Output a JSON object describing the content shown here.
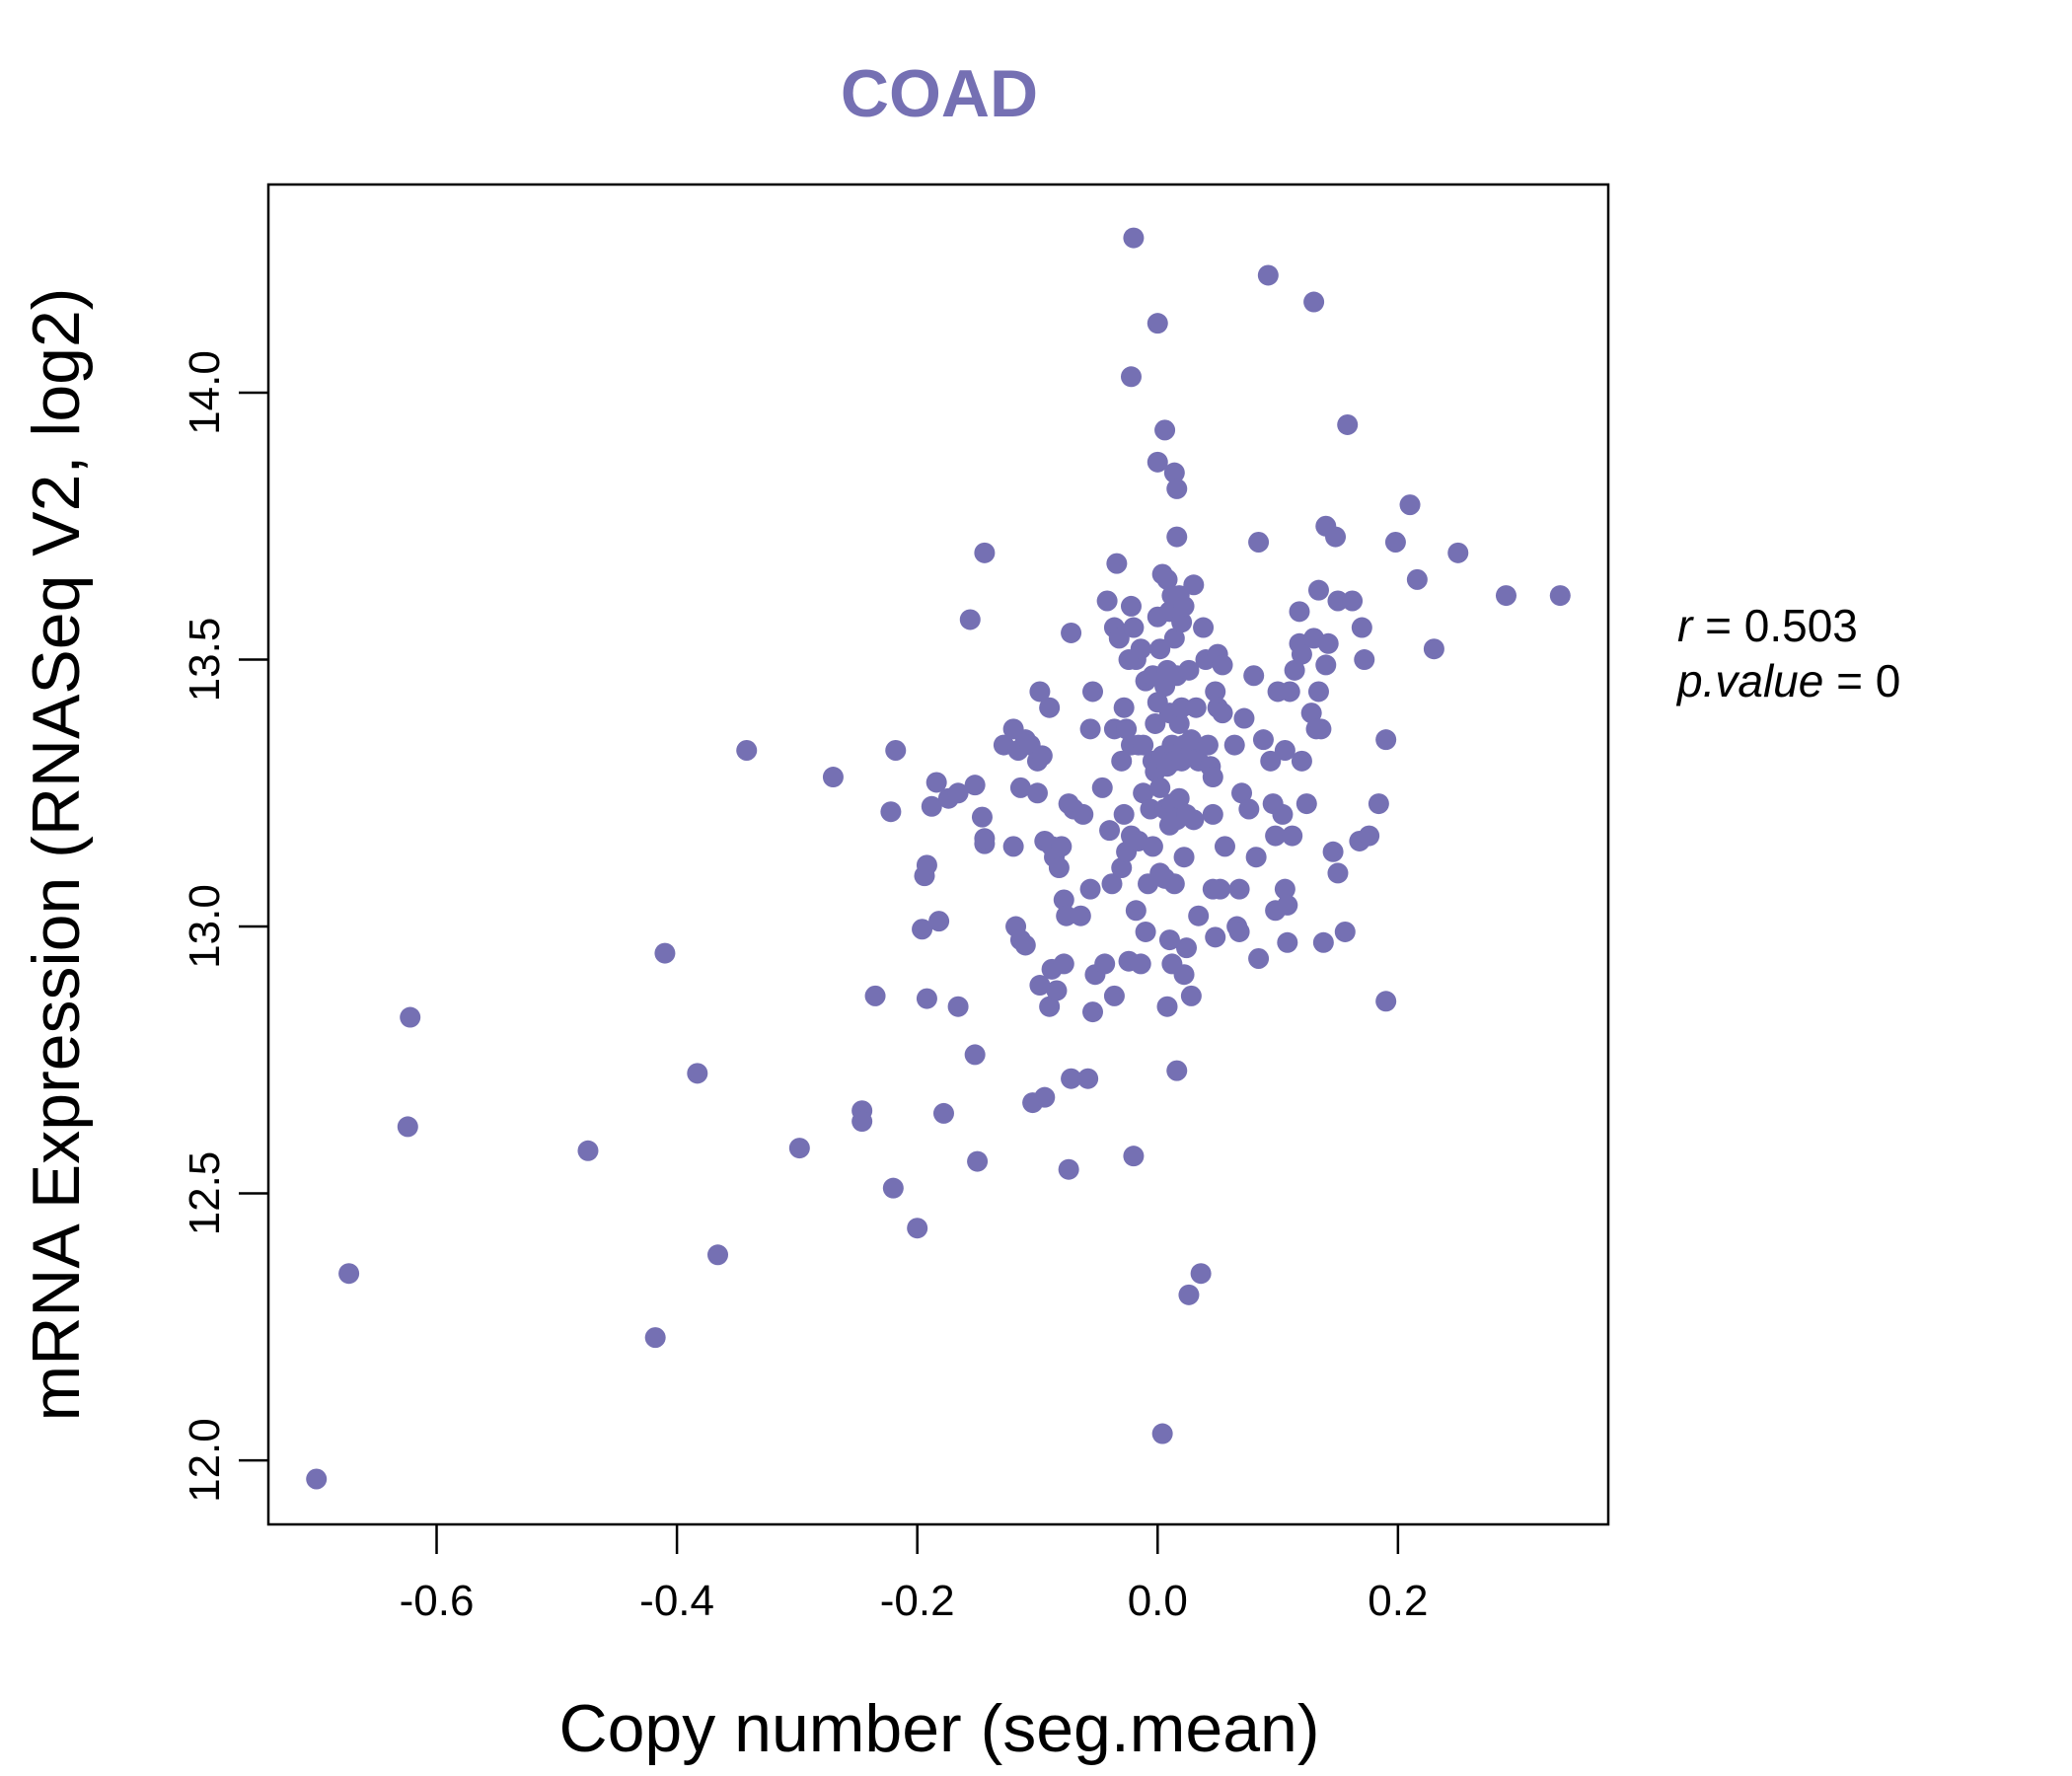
{
  "chart_data": {
    "type": "scatter",
    "title": "COAD",
    "xlabel": "Copy number (seg.mean)",
    "ylabel": "mRNA Expression (RNASeq V2, log2)",
    "xlim": [
      -0.74,
      0.375
    ],
    "ylim": [
      11.88,
      14.39
    ],
    "xticks": [
      -0.6,
      -0.4,
      -0.2,
      0.0,
      0.2
    ],
    "xtick_labels": [
      "-0.6",
      "-0.4",
      "-0.2",
      "0.0",
      "0.2"
    ],
    "yticks": [
      12.0,
      12.5,
      13.0,
      13.5,
      14.0
    ],
    "ytick_labels": [
      "12.0",
      "12.5",
      "13.0",
      "13.5",
      "14.0"
    ],
    "grid": false,
    "point_color": "#7570b3",
    "stats": {
      "r_symbol": "r",
      "r_value": "0.503",
      "p_symbol": "p.value",
      "p_value": "0"
    },
    "points": [
      [
        -0.7,
        11.965
      ],
      [
        -0.673,
        12.35
      ],
      [
        -0.622,
        12.83
      ],
      [
        -0.624,
        12.625
      ],
      [
        -0.474,
        12.58
      ],
      [
        -0.418,
        12.23
      ],
      [
        -0.41,
        12.95
      ],
      [
        -0.383,
        12.725
      ],
      [
        -0.366,
        12.385
      ],
      [
        -0.342,
        13.33
      ],
      [
        -0.298,
        12.585
      ],
      [
        -0.27,
        13.28
      ],
      [
        -0.246,
        12.655
      ],
      [
        -0.246,
        12.635
      ],
      [
        -0.235,
        12.87
      ],
      [
        -0.218,
        13.33
      ],
      [
        -0.22,
        12.51
      ],
      [
        -0.222,
        13.215
      ],
      [
        -0.2,
        12.435
      ],
      [
        -0.196,
        12.995
      ],
      [
        -0.194,
        13.095
      ],
      [
        -0.192,
        13.115
      ],
      [
        -0.192,
        12.865
      ],
      [
        -0.188,
        13.225
      ],
      [
        -0.184,
        13.27
      ],
      [
        -0.182,
        13.01
      ],
      [
        -0.178,
        12.65
      ],
      [
        -0.174,
        13.24
      ],
      [
        -0.166,
        13.25
      ],
      [
        -0.166,
        12.85
      ],
      [
        -0.156,
        13.575
      ],
      [
        -0.152,
        13.265
      ],
      [
        -0.152,
        12.76
      ],
      [
        -0.15,
        12.56
      ],
      [
        -0.146,
        13.205
      ],
      [
        -0.144,
        13.155
      ],
      [
        -0.144,
        13.165
      ],
      [
        -0.144,
        13.7
      ],
      [
        -0.128,
        13.34
      ],
      [
        -0.12,
        13.37
      ],
      [
        -0.12,
        13.15
      ],
      [
        -0.118,
        13.0
      ],
      [
        -0.116,
        13.33
      ],
      [
        -0.114,
        13.26
      ],
      [
        -0.114,
        12.975
      ],
      [
        -0.11,
        13.35
      ],
      [
        -0.11,
        12.965
      ],
      [
        -0.106,
        13.34
      ],
      [
        -0.104,
        12.67
      ],
      [
        -0.1,
        13.31
      ],
      [
        -0.1,
        13.25
      ],
      [
        -0.098,
        13.44
      ],
      [
        -0.098,
        12.89
      ],
      [
        -0.096,
        13.32
      ],
      [
        -0.094,
        12.68
      ],
      [
        -0.094,
        13.16
      ],
      [
        -0.09,
        13.41
      ],
      [
        -0.09,
        12.85
      ],
      [
        -0.088,
        13.15
      ],
      [
        -0.088,
        12.92
      ],
      [
        -0.086,
        13.13
      ],
      [
        -0.084,
        12.88
      ],
      [
        -0.082,
        13.11
      ],
      [
        -0.08,
        13.15
      ],
      [
        -0.078,
        13.05
      ],
      [
        -0.078,
        12.93
      ],
      [
        -0.076,
        13.02
      ],
      [
        -0.074,
        12.545
      ],
      [
        -0.074,
        13.23
      ],
      [
        -0.072,
        13.55
      ],
      [
        -0.072,
        12.715
      ],
      [
        -0.07,
        13.22
      ],
      [
        -0.064,
        13.02
      ],
      [
        -0.062,
        13.21
      ],
      [
        -0.058,
        12.715
      ],
      [
        -0.056,
        13.37
      ],
      [
        -0.056,
        13.07
      ],
      [
        -0.054,
        13.44
      ],
      [
        -0.054,
        12.84
      ],
      [
        -0.052,
        12.91
      ],
      [
        -0.046,
        13.26
      ],
      [
        -0.044,
        12.93
      ],
      [
        -0.042,
        13.61
      ],
      [
        -0.04,
        13.18
      ],
      [
        -0.038,
        13.08
      ],
      [
        -0.036,
        13.37
      ],
      [
        -0.036,
        13.56
      ],
      [
        -0.036,
        12.87
      ],
      [
        -0.034,
        13.68
      ],
      [
        -0.032,
        13.54
      ],
      [
        -0.03,
        13.31
      ],
      [
        -0.03,
        13.11
      ],
      [
        -0.028,
        13.21
      ],
      [
        -0.028,
        13.41
      ],
      [
        -0.026,
        13.37
      ],
      [
        -0.026,
        13.14
      ],
      [
        -0.024,
        13.5
      ],
      [
        -0.024,
        12.935
      ],
      [
        -0.022,
        13.6
      ],
      [
        -0.022,
        13.17
      ],
      [
        -0.022,
        13.34
      ],
      [
        -0.022,
        14.03
      ],
      [
        -0.02,
        13.56
      ],
      [
        -0.02,
        12.57
      ],
      [
        -0.02,
        14.29
      ],
      [
        -0.018,
        13.03
      ],
      [
        -0.018,
        13.5
      ],
      [
        -0.016,
        13.34
      ],
      [
        -0.016,
        13.16
      ],
      [
        -0.014,
        13.52
      ],
      [
        -0.014,
        12.93
      ],
      [
        -0.012,
        13.34
      ],
      [
        -0.012,
        13.25
      ],
      [
        -0.01,
        13.46
      ],
      [
        -0.01,
        12.99
      ],
      [
        -0.008,
        13.08
      ],
      [
        -0.006,
        13.22
      ],
      [
        -0.004,
        13.47
      ],
      [
        -0.004,
        13.31
      ],
      [
        -0.004,
        13.15
      ],
      [
        -0.002,
        13.38
      ],
      [
        -0.002,
        13.29
      ],
      [
        0.0,
        13.42
      ],
      [
        0.0,
        13.87
      ],
      [
        0.0,
        14.13
      ],
      [
        0.0,
        13.58
      ],
      [
        0.002,
        13.52
      ],
      [
        0.002,
        13.26
      ],
      [
        0.002,
        13.1
      ],
      [
        0.004,
        12.05
      ],
      [
        0.004,
        13.66
      ],
      [
        0.004,
        13.32
      ],
      [
        0.006,
        13.45
      ],
      [
        0.006,
        13.22
      ],
      [
        0.006,
        13.93
      ],
      [
        0.006,
        13.09
      ],
      [
        0.008,
        12.85
      ],
      [
        0.008,
        13.3
      ],
      [
        0.008,
        13.48
      ],
      [
        0.008,
        13.65
      ],
      [
        0.01,
        13.4
      ],
      [
        0.01,
        13.19
      ],
      [
        0.01,
        12.975
      ],
      [
        0.01,
        13.59
      ],
      [
        0.012,
        13.34
      ],
      [
        0.012,
        13.23
      ],
      [
        0.012,
        12.93
      ],
      [
        0.012,
        13.62
      ],
      [
        0.014,
        13.54
      ],
      [
        0.014,
        13.31
      ],
      [
        0.014,
        13.08
      ],
      [
        0.014,
        13.85
      ],
      [
        0.016,
        13.47
      ],
      [
        0.016,
        13.2
      ],
      [
        0.016,
        12.73
      ],
      [
        0.016,
        13.82
      ],
      [
        0.016,
        13.73
      ],
      [
        0.018,
        13.38
      ],
      [
        0.018,
        13.24
      ],
      [
        0.018,
        13.62
      ],
      [
        0.02,
        13.57
      ],
      [
        0.02,
        13.41
      ],
      [
        0.02,
        13.31
      ],
      [
        0.022,
        13.6
      ],
      [
        0.022,
        13.34
      ],
      [
        0.022,
        13.13
      ],
      [
        0.022,
        12.91
      ],
      [
        0.024,
        13.21
      ],
      [
        0.024,
        12.96
      ],
      [
        0.026,
        12.31
      ],
      [
        0.026,
        13.48
      ],
      [
        0.028,
        13.33
      ],
      [
        0.028,
        13.35
      ],
      [
        0.028,
        12.87
      ],
      [
        0.03,
        13.64
      ],
      [
        0.03,
        13.2
      ],
      [
        0.032,
        13.41
      ],
      [
        0.034,
        13.02
      ],
      [
        0.034,
        13.31
      ],
      [
        0.036,
        12.35
      ],
      [
        0.038,
        13.56
      ],
      [
        0.04,
        13.5
      ],
      [
        0.042,
        13.34
      ],
      [
        0.044,
        13.3
      ],
      [
        0.046,
        13.28
      ],
      [
        0.046,
        13.07
      ],
      [
        0.046,
        13.21
      ],
      [
        0.048,
        13.44
      ],
      [
        0.048,
        12.98
      ],
      [
        0.05,
        13.51
      ],
      [
        0.05,
        13.41
      ],
      [
        0.052,
        13.07
      ],
      [
        0.054,
        13.4
      ],
      [
        0.054,
        13.49
      ],
      [
        0.056,
        13.15
      ],
      [
        0.064,
        13.34
      ],
      [
        0.066,
        13.0
      ],
      [
        0.068,
        13.07
      ],
      [
        0.068,
        12.99
      ],
      [
        0.07,
        13.25
      ],
      [
        0.072,
        13.39
      ],
      [
        0.076,
        13.22
      ],
      [
        0.08,
        13.47
      ],
      [
        0.082,
        13.13
      ],
      [
        0.084,
        13.72
      ],
      [
        0.084,
        12.94
      ],
      [
        0.088,
        13.35
      ],
      [
        0.092,
        14.22
      ],
      [
        0.094,
        13.31
      ],
      [
        0.096,
        13.23
      ],
      [
        0.098,
        13.17
      ],
      [
        0.098,
        13.03
      ],
      [
        0.1,
        13.44
      ],
      [
        0.104,
        13.21
      ],
      [
        0.106,
        13.07
      ],
      [
        0.106,
        13.33
      ],
      [
        0.108,
        13.04
      ],
      [
        0.108,
        12.97
      ],
      [
        0.11,
        13.44
      ],
      [
        0.112,
        13.17
      ],
      [
        0.114,
        13.48
      ],
      [
        0.118,
        13.53
      ],
      [
        0.118,
        13.59
      ],
      [
        0.12,
        13.31
      ],
      [
        0.12,
        13.51
      ],
      [
        0.124,
        13.23
      ],
      [
        0.128,
        13.4
      ],
      [
        0.13,
        14.17
      ],
      [
        0.13,
        13.54
      ],
      [
        0.132,
        13.37
      ],
      [
        0.134,
        13.44
      ],
      [
        0.134,
        13.63
      ],
      [
        0.136,
        13.37
      ],
      [
        0.138,
        12.97
      ],
      [
        0.14,
        13.75
      ],
      [
        0.14,
        13.49
      ],
      [
        0.142,
        13.53
      ],
      [
        0.146,
        13.14
      ],
      [
        0.148,
        13.73
      ],
      [
        0.15,
        13.1
      ],
      [
        0.15,
        13.61
      ],
      [
        0.156,
        12.99
      ],
      [
        0.158,
        13.94
      ],
      [
        0.162,
        13.61
      ],
      [
        0.168,
        13.16
      ],
      [
        0.17,
        13.56
      ],
      [
        0.172,
        13.5
      ],
      [
        0.176,
        13.17
      ],
      [
        0.184,
        13.23
      ],
      [
        0.19,
        13.35
      ],
      [
        0.19,
        12.86
      ],
      [
        0.198,
        13.72
      ],
      [
        0.21,
        13.79
      ],
      [
        0.216,
        13.65
      ],
      [
        0.23,
        13.52
      ],
      [
        0.25,
        13.7
      ],
      [
        0.29,
        13.62
      ],
      [
        0.335,
        13.62
      ]
    ]
  }
}
